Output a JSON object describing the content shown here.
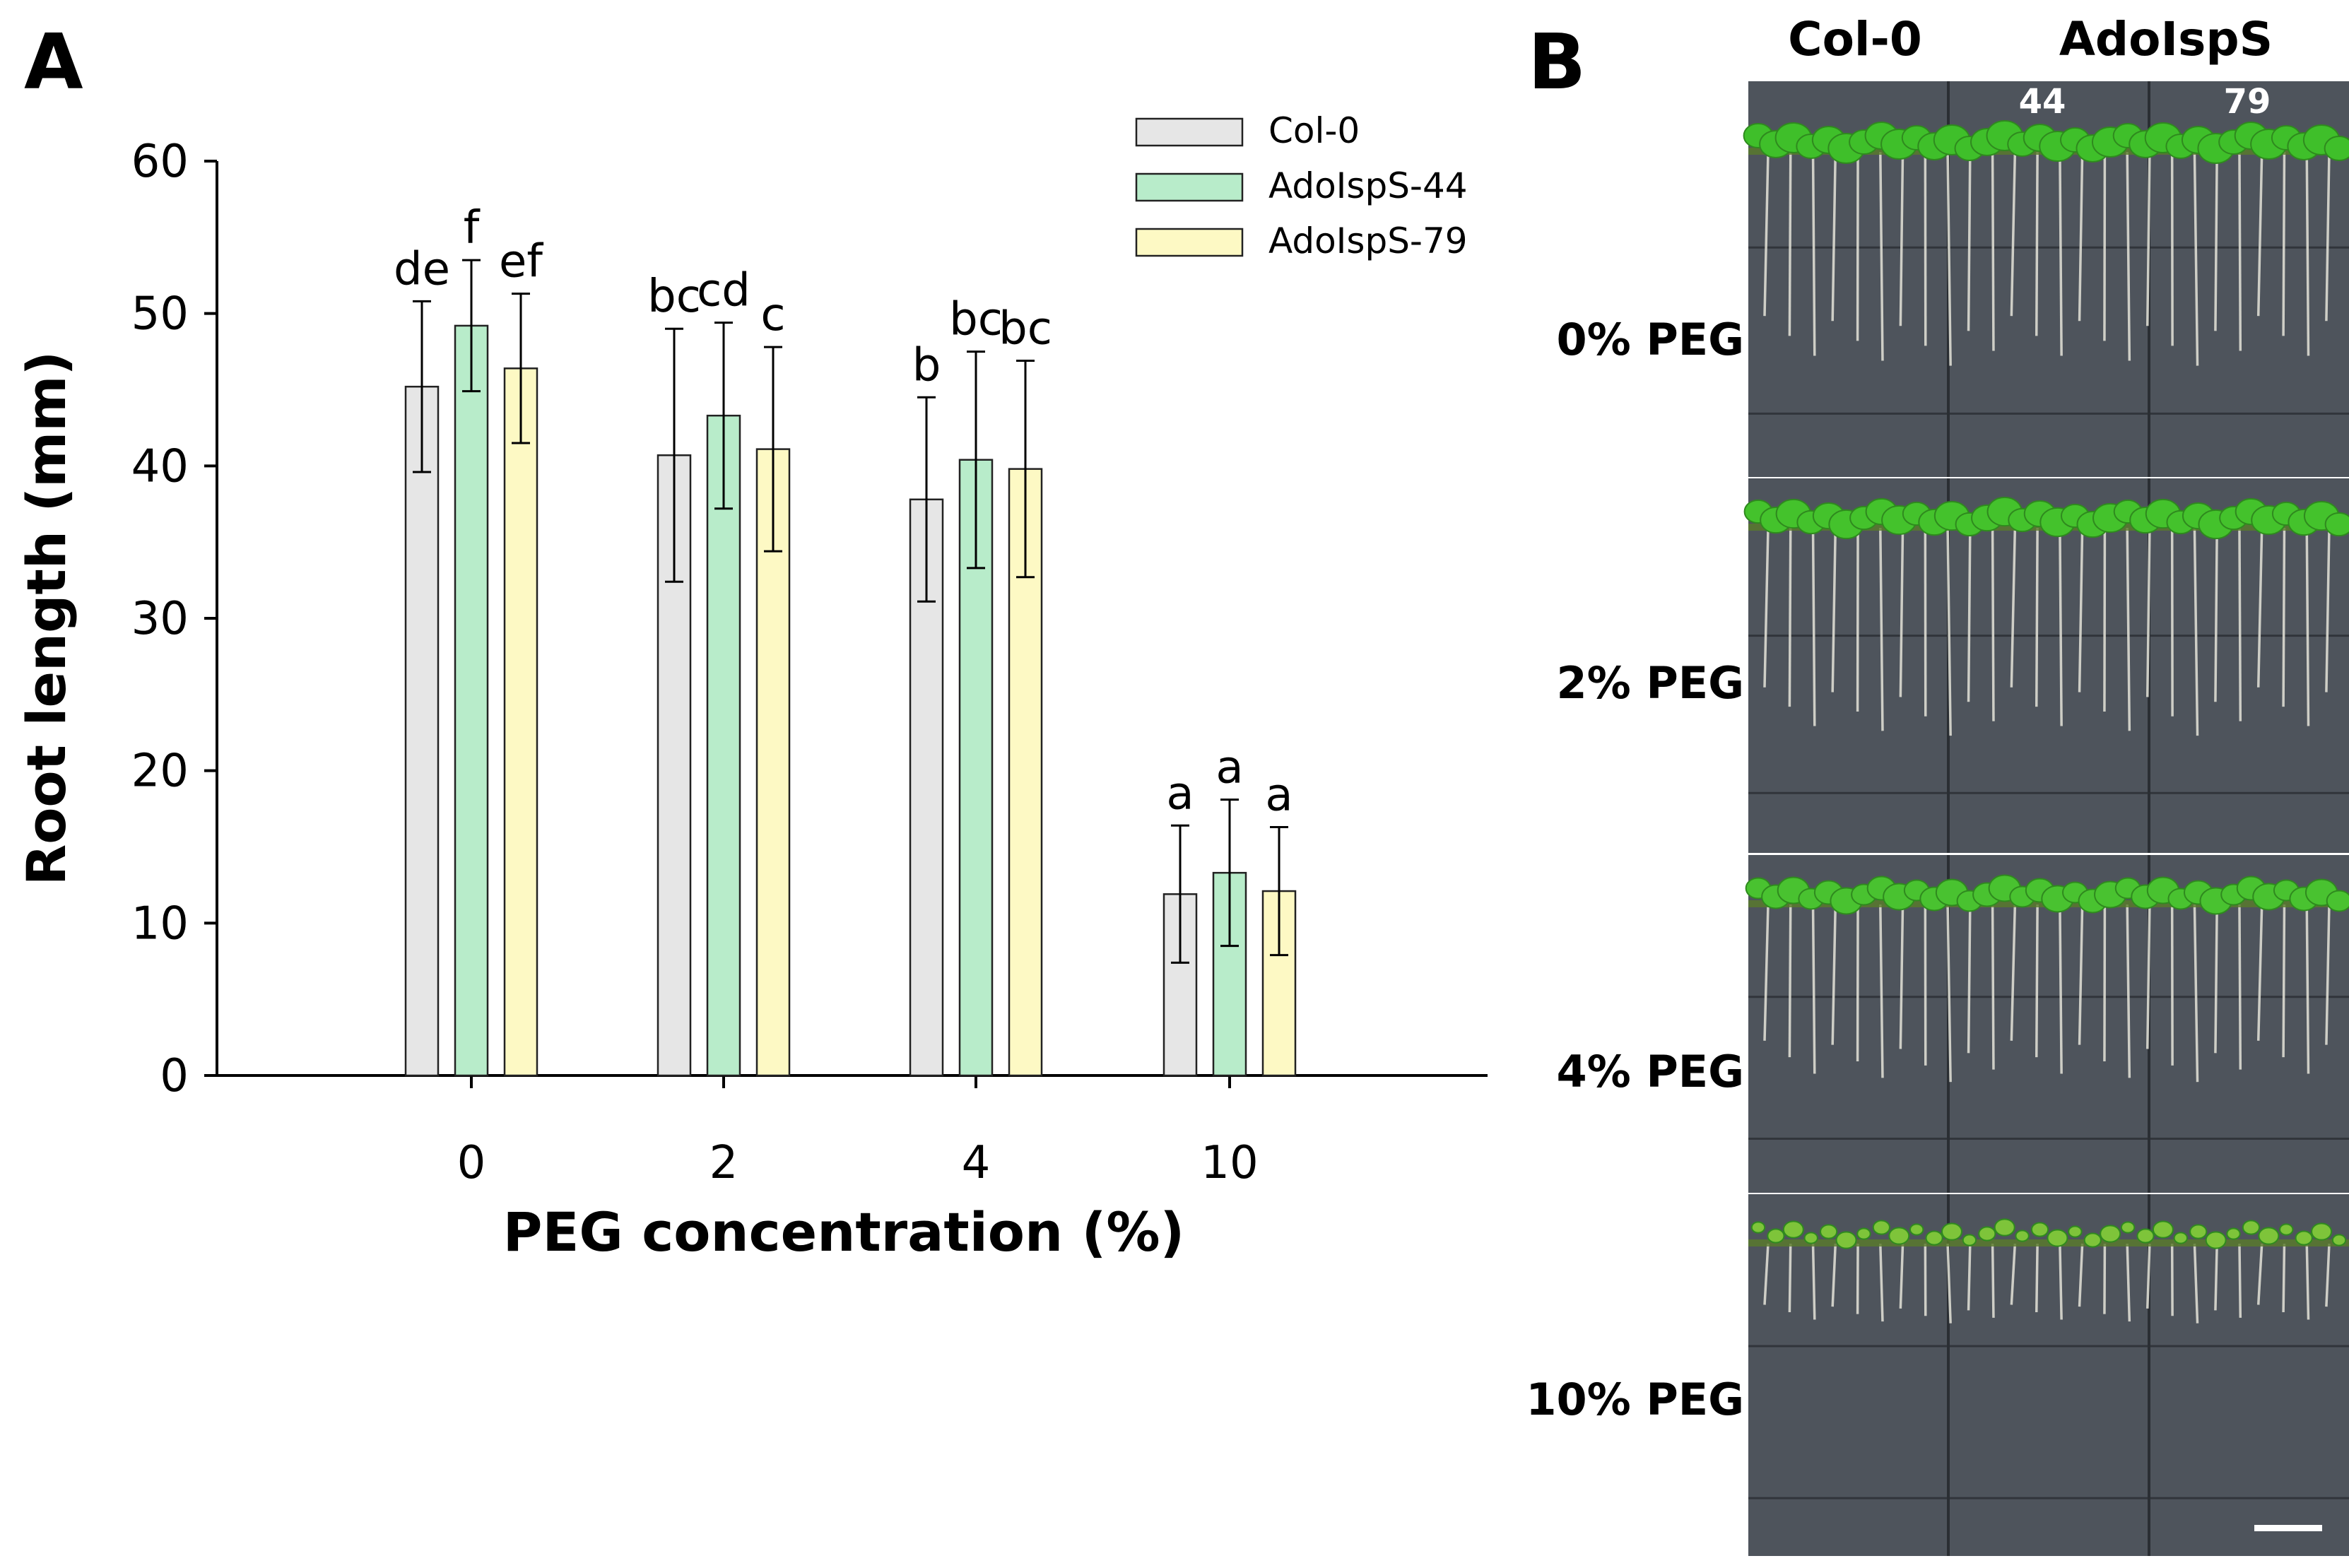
{
  "figure": {
    "panel_a_label": "A",
    "panel_b_label": "B"
  },
  "chart_data": {
    "type": "bar",
    "title": "",
    "xlabel": "PEG concentration (%)",
    "ylabel": "Root length (mm)",
    "ylim": [
      0,
      60
    ],
    "yticks": [
      0,
      10,
      20,
      30,
      40,
      50,
      60
    ],
    "categories": [
      "0",
      "2",
      "4",
      "10"
    ],
    "series": [
      {
        "name": "Col-0",
        "color": "#e6e6e6",
        "values": [
          45.2,
          40.7,
          37.8,
          11.9
        ],
        "errors": [
          5.6,
          8.3,
          6.7,
          4.5
        ],
        "letters": [
          "de",
          "bc",
          "b",
          "a"
        ]
      },
      {
        "name": "AdoIspS-44",
        "color": "#b8ecca",
        "values": [
          49.2,
          43.3,
          40.4,
          13.3
        ],
        "errors": [
          4.3,
          6.1,
          7.1,
          4.8
        ],
        "letters": [
          "f",
          "cd",
          "bc",
          "a"
        ]
      },
      {
        "name": "AdoIspS-79",
        "color": "#fdf9c4",
        "values": [
          46.4,
          41.1,
          39.8,
          12.1
        ],
        "errors": [
          4.9,
          6.7,
          7.1,
          4.2
        ],
        "letters": [
          "ef",
          "c",
          "bc",
          "a"
        ]
      }
    ],
    "legend_position": "top-right",
    "grid": false
  },
  "photo_panel": {
    "column_headers": {
      "control": "Col-0",
      "transgenic": "AdoIspS"
    },
    "line_numbers": [
      "44",
      "79"
    ],
    "rows": [
      {
        "label": "0% PEG",
        "leaf_color": "#3fbf2a",
        "leaf_size": 1.0,
        "root_length": 0.72
      },
      {
        "label": "2% PEG",
        "leaf_color": "#44c22c",
        "leaf_size": 0.95,
        "root_length": 0.7
      },
      {
        "label": "4% PEG",
        "leaf_color": "#49c230",
        "leaf_size": 0.85,
        "root_length": 0.68
      },
      {
        "label": "10% PEG",
        "leaf_color": "#7ec43a",
        "leaf_size": 0.45,
        "root_length": 0.28
      }
    ],
    "plate_color": "#444a52"
  }
}
